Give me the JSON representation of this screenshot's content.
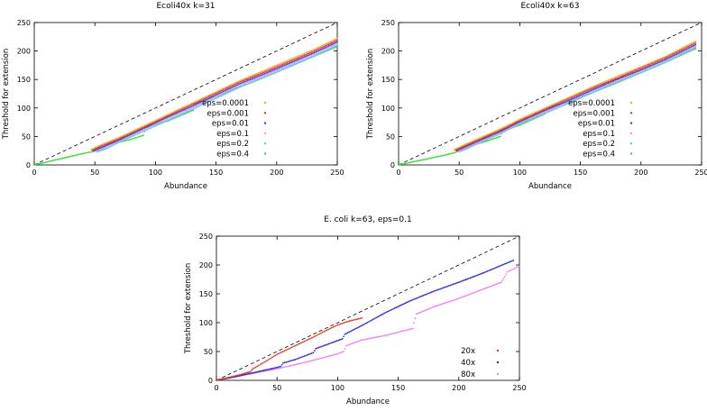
{
  "chart_data": [
    {
      "type": "scatter",
      "title": "Ecoli40x k=31",
      "xlabel": "Abundance",
      "ylabel": "Threshold for extension",
      "xlim": [
        0,
        250
      ],
      "ylim": [
        0,
        250
      ],
      "xticks": [
        0,
        50,
        100,
        150,
        200,
        250
      ],
      "yticks": [
        0,
        50,
        100,
        150,
        200,
        250
      ],
      "legend_position": "right",
      "reference_line": {
        "style": "dashed",
        "slope": 1
      },
      "series": [
        {
          "name": "eps=0.0001",
          "color": "#f5a623",
          "points": [
            [
              47,
              27
            ],
            [
              55,
              35
            ],
            [
              70,
              48
            ],
            [
              90,
              68
            ],
            [
              110,
              88
            ],
            [
              130,
              108
            ],
            [
              150,
              128
            ],
            [
              170,
              148
            ],
            [
              190,
              166
            ],
            [
              210,
              184
            ],
            [
              230,
              202
            ],
            [
              250,
              222
            ]
          ]
        },
        {
          "name": "eps=0.001",
          "color": "#e8341c",
          "points": [
            [
              48,
              26
            ],
            [
              56,
              34
            ],
            [
              70,
              46
            ],
            [
              90,
              66
            ],
            [
              110,
              86
            ],
            [
              130,
              106
            ],
            [
              150,
              126
            ],
            [
              170,
              146
            ],
            [
              190,
              163
            ],
            [
              210,
              181
            ],
            [
              230,
              199
            ],
            [
              250,
              219
            ]
          ]
        },
        {
          "name": "eps=0.01",
          "color": "#3a3ae8",
          "points": [
            [
              49,
              25
            ],
            [
              57,
              32
            ],
            [
              70,
              44
            ],
            [
              90,
              64
            ],
            [
              110,
              84
            ],
            [
              130,
              103
            ],
            [
              150,
              123
            ],
            [
              170,
              143
            ],
            [
              190,
              160
            ],
            [
              210,
              178
            ],
            [
              230,
              196
            ],
            [
              250,
              216
            ]
          ]
        },
        {
          "name": "eps=0.1",
          "color": "#f08cf0",
          "points": [
            [
              50,
              24
            ],
            [
              58,
              30
            ],
            [
              70,
              42
            ],
            [
              90,
              62
            ],
            [
              110,
              81
            ],
            [
              130,
              100
            ],
            [
              150,
              120
            ],
            [
              170,
              140
            ],
            [
              190,
              157
            ],
            [
              210,
              175
            ],
            [
              230,
              193
            ],
            [
              250,
              213
            ]
          ]
        },
        {
          "name": "eps=0.2",
          "color": "#44d4e6",
          "points": [
            [
              52,
              23
            ],
            [
              60,
              29
            ],
            [
              70,
              40
            ],
            [
              90,
              59
            ],
            [
              110,
              78
            ],
            [
              130,
              97
            ],
            [
              150,
              117
            ],
            [
              170,
              137
            ],
            [
              190,
              154
            ],
            [
              210,
              172
            ],
            [
              230,
              190
            ],
            [
              250,
              210
            ]
          ]
        },
        {
          "name": "eps=0.4",
          "color": "#2ee02e",
          "points": [
            [
              0,
              0
            ],
            [
              20,
              10
            ],
            [
              40,
              20
            ],
            [
              50,
              24
            ],
            [
              55,
              27
            ],
            [
              60,
              36
            ],
            [
              70,
              40
            ],
            [
              80,
              45
            ],
            [
              90,
              52
            ],
            [
              92,
              66
            ],
            [
              110,
              77
            ],
            [
              131,
              96
            ],
            [
              132,
              107
            ],
            [
              150,
              120
            ],
            [
              170,
              137
            ],
            [
              190,
              154
            ],
            [
              210,
              172
            ],
            [
              230,
              190
            ],
            [
              250,
              208
            ]
          ]
        }
      ]
    },
    {
      "type": "scatter",
      "title": "Ecoli40x k=63",
      "xlabel": "Abundance",
      "ylabel": "Threshold for extension",
      "xlim": [
        0,
        250
      ],
      "ylim": [
        0,
        250
      ],
      "xticks": [
        0,
        50,
        100,
        150,
        200,
        250
      ],
      "yticks": [
        0,
        50,
        100,
        150,
        200,
        250
      ],
      "legend_position": "right",
      "reference_line": {
        "style": "dashed",
        "slope": 1
      },
      "series": [
        {
          "name": "eps=0.0001",
          "color": "#f5a623",
          "points": [
            [
              46,
              27
            ],
            [
              55,
              36
            ],
            [
              70,
              50
            ],
            [
              85,
              64
            ],
            [
              100,
              80
            ],
            [
              120,
              99
            ],
            [
              140,
              118
            ],
            [
              160,
              137
            ],
            [
              180,
              155
            ],
            [
              200,
              172
            ],
            [
              220,
              190
            ],
            [
              245,
              217
            ]
          ]
        },
        {
          "name": "eps=0.001",
          "color": "#e8341c",
          "points": [
            [
              47,
              26
            ],
            [
              55,
              34
            ],
            [
              70,
              48
            ],
            [
              85,
              62
            ],
            [
              100,
              78
            ],
            [
              120,
              97
            ],
            [
              140,
              116
            ],
            [
              160,
              135
            ],
            [
              180,
              152
            ],
            [
              200,
              170
            ],
            [
              220,
              188
            ],
            [
              245,
              214
            ]
          ]
        },
        {
          "name": "eps=0.01",
          "color": "#3a3ae8",
          "points": [
            [
              48,
              25
            ],
            [
              56,
              33
            ],
            [
              70,
              46
            ],
            [
              85,
              60
            ],
            [
              100,
              76
            ],
            [
              120,
              95
            ],
            [
              140,
              113
            ],
            [
              160,
              132
            ],
            [
              180,
              150
            ],
            [
              200,
              167
            ],
            [
              220,
              185
            ],
            [
              245,
              211
            ]
          ]
        },
        {
          "name": "eps=0.1",
          "color": "#f08cf0",
          "points": [
            [
              49,
              24
            ],
            [
              57,
              31
            ],
            [
              70,
              44
            ],
            [
              85,
              58
            ],
            [
              100,
              74
            ],
            [
              120,
              92
            ],
            [
              140,
              111
            ],
            [
              160,
              130
            ],
            [
              180,
              147
            ],
            [
              200,
              165
            ],
            [
              220,
              183
            ],
            [
              245,
              208
            ]
          ]
        },
        {
          "name": "eps=0.2",
          "color": "#44d4e6",
          "points": [
            [
              50,
              23
            ],
            [
              58,
              30
            ],
            [
              70,
              42
            ],
            [
              85,
              56
            ],
            [
              100,
              72
            ],
            [
              120,
              90
            ],
            [
              140,
              108
            ],
            [
              160,
              127
            ],
            [
              180,
              145
            ],
            [
              200,
              162
            ],
            [
              220,
              180
            ],
            [
              245,
              206
            ]
          ]
        },
        {
          "name": "eps=0.4",
          "color": "#2ee02e",
          "points": [
            [
              0,
              0
            ],
            [
              20,
              9
            ],
            [
              40,
              18
            ],
            [
              47,
              22
            ],
            [
              52,
              27
            ],
            [
              60,
              35
            ],
            [
              70,
              40
            ],
            [
              84,
              50
            ],
            [
              86,
              60
            ],
            [
              100,
              70
            ],
            [
              121,
              90
            ],
            [
              122,
              100
            ],
            [
              140,
              110
            ],
            [
              160,
              127
            ],
            [
              180,
              144
            ],
            [
              200,
              162
            ],
            [
              220,
              180
            ],
            [
              245,
              204
            ]
          ]
        }
      ]
    },
    {
      "type": "scatter",
      "title": "E. coli k=63, eps=0.1",
      "xlabel": "Abundance",
      "ylabel": "Threshold for extension",
      "xlim": [
        0,
        250
      ],
      "ylim": [
        0,
        250
      ],
      "xticks": [
        0,
        50,
        100,
        150,
        200,
        250
      ],
      "yticks": [
        0,
        50,
        100,
        150,
        200,
        250
      ],
      "legend_position": "bottom-right",
      "reference_line": {
        "style": "dashed",
        "slope": 1
      },
      "series": [
        {
          "name": "20x",
          "color": "#e8341c",
          "points": [
            [
              0,
              0
            ],
            [
              10,
              5
            ],
            [
              20,
              10
            ],
            [
              28,
              15
            ],
            [
              30,
              20
            ],
            [
              40,
              32
            ],
            [
              50,
              45
            ],
            [
              60,
              55
            ],
            [
              70,
              65
            ],
            [
              80,
              75
            ],
            [
              90,
              86
            ],
            [
              100,
              96
            ],
            [
              110,
              103
            ],
            [
              120,
              108
            ]
          ]
        },
        {
          "name": "40x",
          "color": "#2a2ae0",
          "points": [
            [
              0,
              0
            ],
            [
              15,
              6
            ],
            [
              30,
              13
            ],
            [
              45,
              20
            ],
            [
              53,
              24
            ],
            [
              55,
              30
            ],
            [
              65,
              36
            ],
            [
              75,
              44
            ],
            [
              80,
              48
            ],
            [
              82,
              55
            ],
            [
              95,
              65
            ],
            [
              104,
              72
            ],
            [
              106,
              80
            ],
            [
              120,
              95
            ],
            [
              140,
              118
            ],
            [
              160,
              138
            ],
            [
              180,
              155
            ],
            [
              200,
              170
            ],
            [
              220,
              186
            ],
            [
              245,
              208
            ]
          ]
        },
        {
          "name": "80x",
          "color": "#f080f0",
          "points": [
            [
              0,
              0
            ],
            [
              25,
              10
            ],
            [
              50,
              20
            ],
            [
              75,
              32
            ],
            [
              100,
              46
            ],
            [
              105,
              50
            ],
            [
              107,
              60
            ],
            [
              120,
              70
            ],
            [
              140,
              78
            ],
            [
              162,
              90
            ],
            [
              163,
              100
            ],
            [
              165,
              115
            ],
            [
              180,
              128
            ],
            [
              200,
              142
            ],
            [
              220,
              158
            ],
            [
              235,
              170
            ],
            [
              238,
              180
            ],
            [
              240,
              188
            ],
            [
              250,
              198
            ]
          ]
        }
      ]
    }
  ]
}
